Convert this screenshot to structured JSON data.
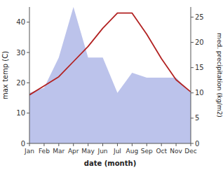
{
  "chart_data": {
    "type": "line",
    "categories": [
      "Jan",
      "Feb",
      "Mar",
      "Apr",
      "May",
      "Jun",
      "Jul",
      "Aug",
      "Sep",
      "Oct",
      "Nov",
      "Dec"
    ],
    "xlabel": "date (month)",
    "ylabel": "max temp (C)",
    "y2label": "med. precipitation (kg/m2)",
    "series": [
      {
        "type": "area",
        "axis": "y2",
        "color": "#b0b8e8",
        "values": [
          10,
          11,
          17,
          27,
          17,
          17,
          10,
          14,
          13,
          13,
          13,
          10
        ]
      },
      {
        "type": "line",
        "axis": "y",
        "color": "#b22222",
        "values": [
          16,
          19,
          22,
          27,
          32,
          38,
          43,
          43,
          36,
          28,
          21,
          17
        ]
      }
    ],
    "ylim": [
      0,
      45
    ],
    "yticks": [
      0,
      10,
      20,
      30,
      40
    ],
    "y2lim": [
      0,
      27
    ],
    "y2ticks": [
      0,
      5,
      10,
      15,
      20,
      25
    ],
    "grid": false
  }
}
